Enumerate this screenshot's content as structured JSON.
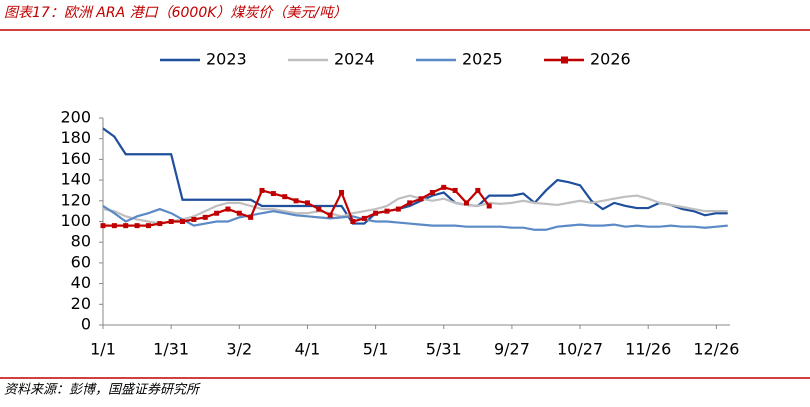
{
  "chart_data": {
    "type": "line",
    "title": "图表17：欧洲 ARA 港口（6000K）煤炭价（美元/吨）",
    "source": "资料来源：彭博，国盛证券研究所",
    "x": [
      0,
      5,
      10,
      15,
      20,
      25,
      30,
      35,
      40,
      45,
      50,
      55,
      60,
      65,
      70,
      75,
      80,
      85,
      90,
      95,
      100,
      105,
      110,
      115,
      120,
      125,
      130,
      135,
      140,
      145,
      150,
      155,
      160,
      165,
      170,
      175,
      180,
      185,
      190,
      195,
      200,
      205,
      210,
      215,
      220,
      225,
      230,
      235,
      240,
      245,
      250,
      255,
      260,
      265,
      270,
      275
    ],
    "xlim": [
      0,
      276
    ],
    "xticks": [
      {
        "value": 0,
        "label": "1/1"
      },
      {
        "value": 30,
        "label": "1/31"
      },
      {
        "value": 60,
        "label": "3/2"
      },
      {
        "value": 90,
        "label": "4/1"
      },
      {
        "value": 120,
        "label": "5/1"
      },
      {
        "value": 150,
        "label": "5/31"
      },
      {
        "value": 180,
        "label": "9/27"
      },
      {
        "value": 210,
        "label": "10/27"
      },
      {
        "value": 240,
        "label": "11/26"
      },
      {
        "value": 270,
        "label": "12/26"
      }
    ],
    "ylim": [
      0,
      200
    ],
    "yticks": [
      0,
      20,
      40,
      60,
      80,
      100,
      120,
      140,
      160,
      180,
      200
    ],
    "grid": false,
    "series": [
      {
        "name": "2023",
        "color": "#1f4e9c",
        "values": [
          190,
          182,
          165,
          165,
          165,
          165,
          165,
          121,
          121,
          121,
          121,
          121,
          121,
          121,
          115,
          115,
          115,
          115,
          115,
          115,
          115,
          115,
          98,
          98,
          108,
          110,
          112,
          115,
          120,
          125,
          128,
          118,
          116,
          115,
          125,
          125,
          125,
          127,
          118,
          130,
          140,
          138,
          135,
          120,
          112,
          118,
          115,
          113,
          113,
          118,
          116,
          112,
          110,
          106,
          108,
          108
        ]
      },
      {
        "name": "2024",
        "color": "#bfbfbf",
        "values": [
          112,
          110,
          105,
          102,
          100,
          98,
          100,
          102,
          105,
          110,
          115,
          118,
          118,
          115,
          112,
          112,
          110,
          108,
          108,
          110,
          108,
          105,
          108,
          110,
          112,
          115,
          122,
          125,
          122,
          120,
          122,
          118,
          116,
          115,
          118,
          117,
          118,
          120,
          118,
          117,
          116,
          118,
          120,
          118,
          120,
          122,
          124,
          125,
          122,
          118,
          116,
          114,
          112,
          110,
          110,
          110
        ]
      },
      {
        "name": "2025",
        "color": "#5b8ac6",
        "values": [
          115,
          108,
          100,
          105,
          108,
          112,
          108,
          102,
          96,
          98,
          100,
          100,
          104,
          106,
          108,
          110,
          108,
          106,
          105,
          104,
          103,
          104,
          105,
          102,
          100,
          100,
          99,
          98,
          97,
          96,
          96,
          96,
          95,
          95,
          95,
          95,
          94,
          94,
          92,
          92,
          95,
          96,
          97,
          96,
          96,
          97,
          95,
          96,
          95,
          95,
          96,
          95,
          95,
          94,
          95,
          96
        ]
      },
      {
        "name": "2026",
        "color": "#c00000",
        "markers": true,
        "values": [
          96,
          96,
          96,
          96,
          96,
          98,
          100,
          100,
          102,
          104,
          108,
          112,
          108,
          104,
          130,
          127,
          124,
          120,
          118,
          112,
          106,
          128,
          100,
          103,
          108,
          110,
          112,
          118,
          122,
          128,
          133,
          130,
          118,
          130,
          115,
          null,
          null,
          null,
          null,
          null,
          null,
          null,
          null,
          null,
          null,
          null,
          null,
          null,
          null,
          null,
          null,
          null,
          null,
          null,
          null,
          null
        ]
      }
    ]
  }
}
